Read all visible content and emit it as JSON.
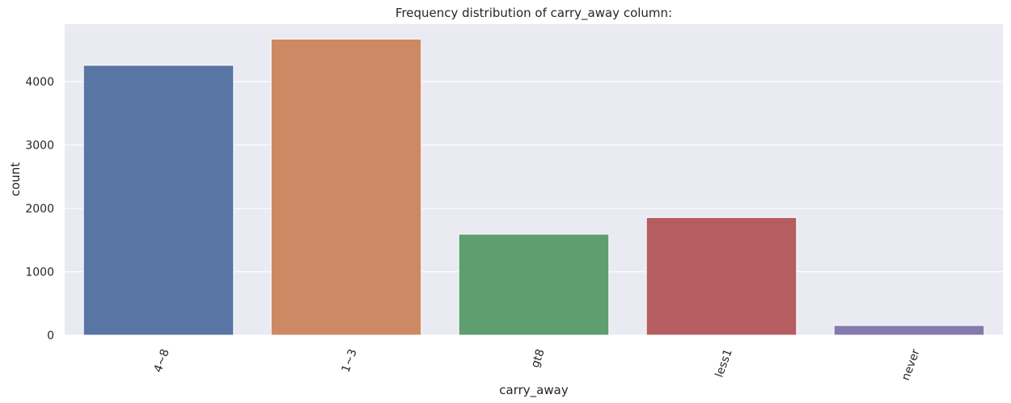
{
  "chart_data": {
    "type": "bar",
    "title": "Frequency distribution of carry_away column:",
    "xlabel": "carry_away",
    "ylabel": "count",
    "categories": [
      "4~8",
      "1~3",
      "gt8",
      "less1",
      "never"
    ],
    "values": [
      4258,
      4672,
      1594,
      1856,
      153
    ],
    "colors": [
      "#5975a4",
      "#cc8963",
      "#5f9e6e",
      "#b55d60",
      "#857aab"
    ],
    "ylim": [
      0,
      4906
    ],
    "yticks": [
      0,
      1000,
      2000,
      3000,
      4000
    ],
    "background": "#eaeaf2",
    "grid": true,
    "legend": "none"
  }
}
